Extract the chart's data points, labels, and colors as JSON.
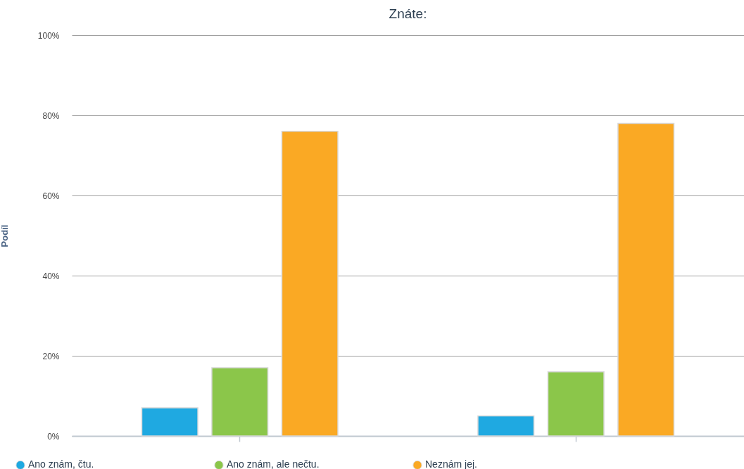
{
  "chart_data": {
    "type": "bar",
    "title": "Znáte:",
    "ylabel": "Podíl",
    "categories": [
      null,
      null
    ],
    "series": [
      {
        "name": "Ano znám, čtu.",
        "color": "#1fa9e1",
        "values": [
          7,
          5
        ]
      },
      {
        "name": "Ano znám, ale nečtu.",
        "color": "#8bc64a",
        "values": [
          17,
          16
        ]
      },
      {
        "name": "Neznám jej.",
        "color": "#faa924",
        "values": [
          76,
          78
        ]
      }
    ],
    "ylim": [
      0,
      100
    ],
    "yticks": [
      {
        "value": 0,
        "label": "0%"
      },
      {
        "value": 20,
        "label": "20%"
      },
      {
        "value": 40,
        "label": "40%"
      },
      {
        "value": 60,
        "label": "60%"
      },
      {
        "value": 80,
        "label": "80%"
      },
      {
        "value": 100,
        "label": "100%"
      }
    ],
    "grid": "y",
    "legend": "bottom"
  }
}
